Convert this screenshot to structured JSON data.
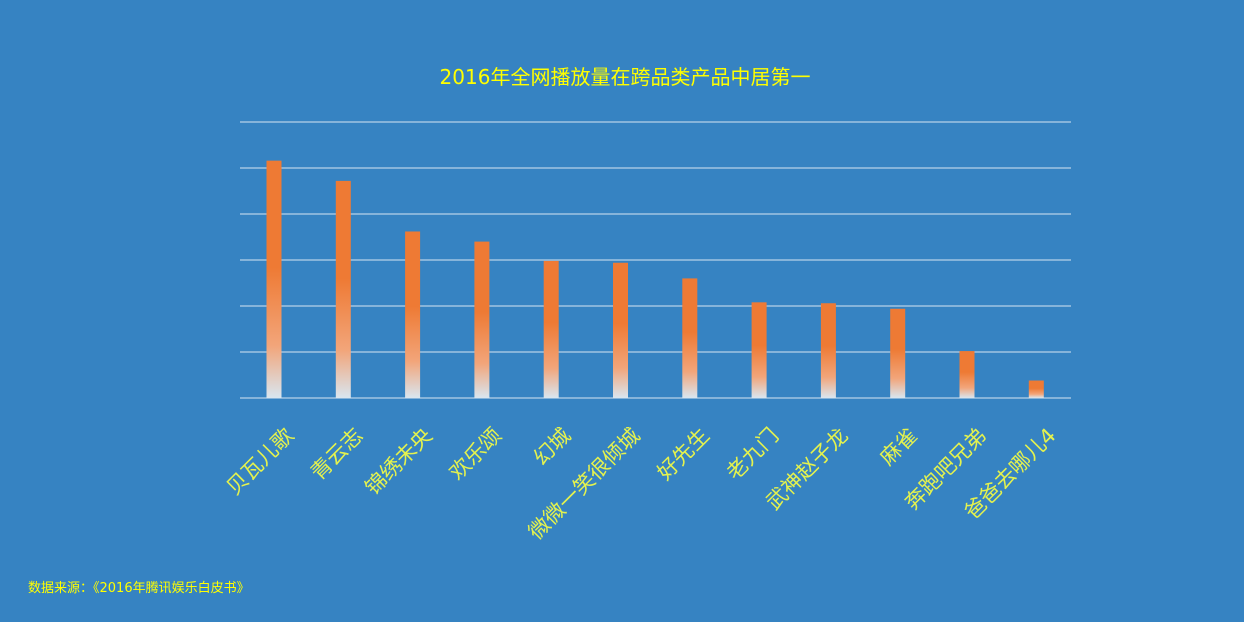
{
  "chart_data": {
    "type": "bar",
    "title": "2016年全网播放量在跨品类产品中居第一",
    "categories": [
      "贝瓦儿歌",
      "青云志",
      "锦绣未央",
      "欢乐颂",
      "幻城",
      "微微一笑很倾城",
      "好先生",
      "老九门",
      "武神赵子龙",
      "麻雀",
      "奔跑吧兄弟",
      "爸爸去哪儿4"
    ],
    "values": [
      258,
      236,
      181,
      170,
      149,
      147,
      130,
      104,
      103,
      97,
      51,
      19
    ],
    "ylim": [
      0,
      300
    ],
    "y_gridline_step": 50,
    "y_tick_labels_shown": false,
    "grid": true,
    "legend": "none",
    "xlabel": "",
    "ylabel": ""
  },
  "footer": {
    "source": "数据来源：《2016年腾讯娱乐白皮书》"
  },
  "colors": {
    "background": "#3683c2",
    "bar_top": "#ee7a34",
    "bar_mid": "#f2a57a",
    "bar_bottom": "#d9e6f0",
    "title": "#ffff00",
    "tick_labels": "#e4f24e",
    "gridline": "#d6e4f2"
  }
}
